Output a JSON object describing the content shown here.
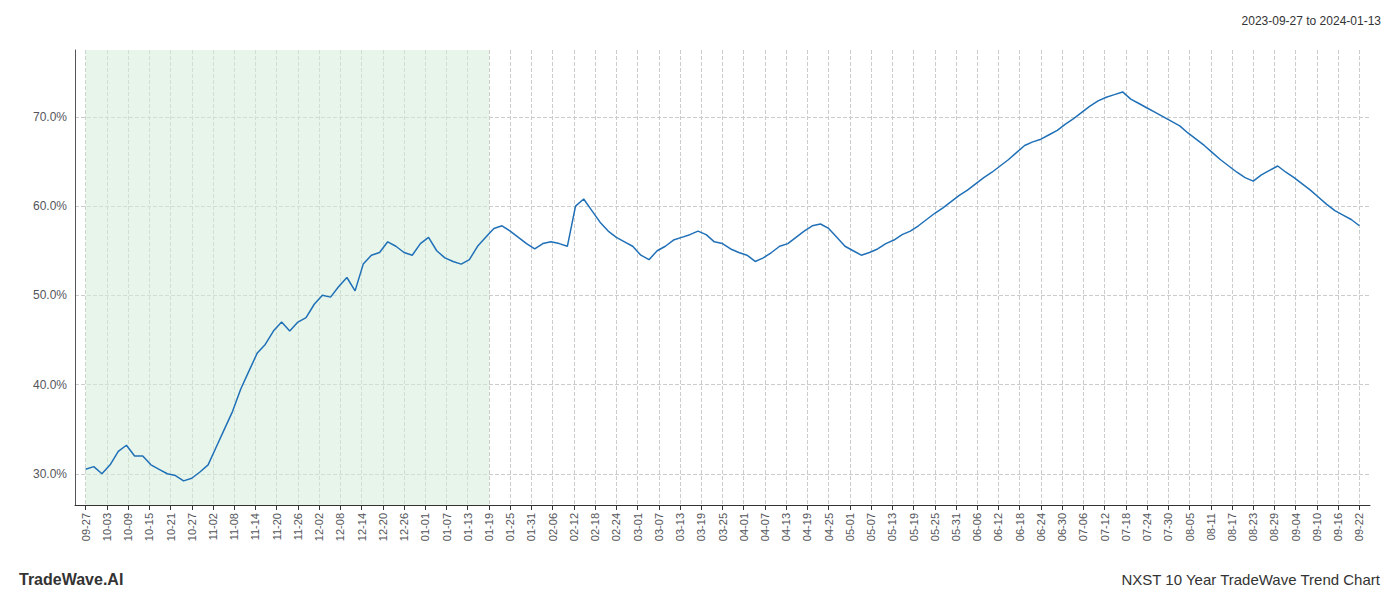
{
  "chart_data": {
    "type": "line",
    "title": "NXST 10 Year TradeWave Trend Chart",
    "subtitle": "2023-09-27 to 2024-01-13",
    "annotations": [
      "TradeWave.AI"
    ],
    "color": "#2070b8",
    "grid": true,
    "xlim": [
      -0.5,
      60.5
    ],
    "xticks": [
      {
        "value": 0,
        "label": "09-27"
      },
      {
        "value": 1,
        "label": "10-03"
      },
      {
        "value": 2,
        "label": "10-09"
      },
      {
        "value": 3,
        "label": "10-15"
      },
      {
        "value": 4,
        "label": "10-21"
      },
      {
        "value": 5,
        "label": "10-27"
      },
      {
        "value": 6,
        "label": "11-02"
      },
      {
        "value": 7,
        "label": "11-08"
      },
      {
        "value": 8,
        "label": "11-14"
      },
      {
        "value": 9,
        "label": "11-20"
      },
      {
        "value": 10,
        "label": "11-26"
      },
      {
        "value": 11,
        "label": "12-02"
      },
      {
        "value": 12,
        "label": "12-08"
      },
      {
        "value": 13,
        "label": "12-14"
      },
      {
        "value": 14,
        "label": "12-20"
      },
      {
        "value": 15,
        "label": "12-26"
      },
      {
        "value": 16,
        "label": "01-01"
      },
      {
        "value": 17,
        "label": "01-07"
      },
      {
        "value": 18,
        "label": "01-13"
      },
      {
        "value": 19,
        "label": "01-19"
      },
      {
        "value": 20,
        "label": "01-25"
      },
      {
        "value": 21,
        "label": "01-31"
      },
      {
        "value": 22,
        "label": "02-06"
      },
      {
        "value": 23,
        "label": "02-12"
      },
      {
        "value": 24,
        "label": "02-18"
      },
      {
        "value": 25,
        "label": "02-24"
      },
      {
        "value": 26,
        "label": "03-01"
      },
      {
        "value": 27,
        "label": "03-07"
      },
      {
        "value": 28,
        "label": "03-13"
      },
      {
        "value": 29,
        "label": "03-19"
      },
      {
        "value": 30,
        "label": "03-25"
      },
      {
        "value": 31,
        "label": "04-01"
      },
      {
        "value": 32,
        "label": "04-07"
      },
      {
        "value": 33,
        "label": "04-13"
      },
      {
        "value": 34,
        "label": "04-19"
      },
      {
        "value": 35,
        "label": "04-25"
      },
      {
        "value": 36,
        "label": "05-01"
      },
      {
        "value": 37,
        "label": "05-07"
      },
      {
        "value": 38,
        "label": "05-13"
      },
      {
        "value": 39,
        "label": "05-19"
      },
      {
        "value": 40,
        "label": "05-25"
      },
      {
        "value": 41,
        "label": "05-31"
      },
      {
        "value": 42,
        "label": "06-06"
      },
      {
        "value": 43,
        "label": "06-12"
      },
      {
        "value": 44,
        "label": "06-18"
      },
      {
        "value": 45,
        "label": "06-24"
      },
      {
        "value": 46,
        "label": "06-30"
      },
      {
        "value": 47,
        "label": "07-06"
      },
      {
        "value": 48,
        "label": "07-12"
      },
      {
        "value": 49,
        "label": "07-18"
      },
      {
        "value": 50,
        "label": "07-24"
      },
      {
        "value": 51,
        "label": "07-30"
      },
      {
        "value": 52,
        "label": "08-05"
      },
      {
        "value": 53,
        "label": "08-11"
      },
      {
        "value": 54,
        "label": "08-17"
      },
      {
        "value": 55,
        "label": "08-23"
      },
      {
        "value": 56,
        "label": "08-29"
      },
      {
        "value": 57,
        "label": "09-04"
      },
      {
        "value": 58,
        "label": "09-10"
      },
      {
        "value": 59,
        "label": "09-16"
      },
      {
        "value": 60,
        "label": "09-22"
      }
    ],
    "ylim": [
      0.265,
      0.775
    ],
    "yticks": [
      {
        "value": 0.3,
        "label": "30.0%"
      },
      {
        "value": 0.4,
        "label": "40.0%"
      },
      {
        "value": 0.5,
        "label": "50.0%"
      },
      {
        "value": 0.6,
        "label": "60.0%"
      },
      {
        "value": 0.7,
        "label": "70.0%"
      }
    ],
    "shaded_span": {
      "from": 0,
      "to": 19,
      "color": "#d4edda"
    },
    "values": [
      0.305,
      0.308,
      0.3,
      0.31,
      0.325,
      0.332,
      0.32,
      0.32,
      0.31,
      0.305,
      0.3,
      0.298,
      0.292,
      0.295,
      0.302,
      0.31,
      0.33,
      0.35,
      0.37,
      0.395,
      0.415,
      0.435,
      0.445,
      0.46,
      0.47,
      0.46,
      0.47,
      0.475,
      0.49,
      0.5,
      0.498,
      0.51,
      0.52,
      0.505,
      0.535,
      0.545,
      0.548,
      0.56,
      0.555,
      0.548,
      0.545,
      0.558,
      0.565,
      0.55,
      0.542,
      0.538,
      0.535,
      0.54,
      0.555,
      0.565,
      0.575,
      0.578,
      0.572,
      0.565,
      0.558,
      0.552,
      0.558,
      0.56,
      0.558,
      0.555,
      0.6,
      0.608,
      0.595,
      0.582,
      0.572,
      0.565,
      0.56,
      0.555,
      0.545,
      0.54,
      0.55,
      0.555,
      0.562,
      0.565,
      0.568,
      0.572,
      0.568,
      0.56,
      0.558,
      0.552,
      0.548,
      0.545,
      0.538,
      0.542,
      0.548,
      0.555,
      0.558,
      0.565,
      0.572,
      0.578,
      0.58,
      0.575,
      0.565,
      0.555,
      0.55,
      0.545,
      0.548,
      0.552,
      0.558,
      0.562,
      0.568,
      0.572,
      0.578,
      0.585,
      0.592,
      0.598,
      0.605,
      0.612,
      0.618,
      0.625,
      0.632,
      0.638,
      0.645,
      0.652,
      0.66,
      0.668,
      0.672,
      0.675,
      0.68,
      0.685,
      0.692,
      0.698,
      0.705,
      0.712,
      0.718,
      0.722,
      0.725,
      0.728,
      0.72,
      0.715,
      0.71,
      0.705,
      0.7,
      0.695,
      0.69,
      0.682,
      0.675,
      0.668,
      0.66,
      0.652,
      0.645,
      0.638,
      0.632,
      0.628,
      0.635,
      0.64,
      0.645,
      0.638,
      0.632,
      0.625,
      0.618,
      0.61,
      0.602,
      0.595,
      0.59,
      0.585,
      0.578
    ]
  }
}
